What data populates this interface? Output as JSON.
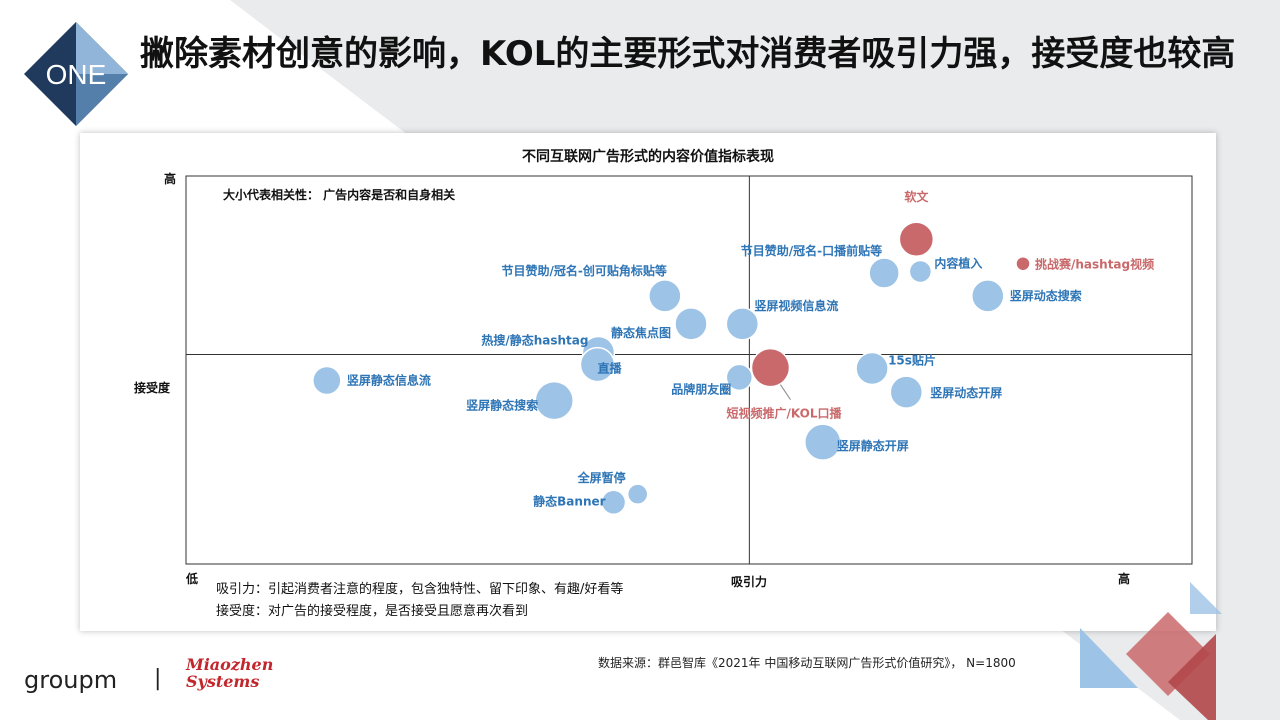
{
  "header": {
    "badge": "ONE",
    "title": "撇除素材创意的影响，KOL的主要形式对消费者吸引力强，接受度也较高"
  },
  "chart_data": {
    "type": "scatter",
    "title": "不同互联网广告形式的内容价值指标表现",
    "subtitle": "大小代表相关性： 广告内容是否和自身相关",
    "xlabel": "吸引力",
    "ylabel": "接受度",
    "x_low": "低",
    "x_high": "高",
    "y_high": "高",
    "xlim": [
      0,
      100
    ],
    "ylim": [
      0,
      100
    ],
    "quadrant_split": [
      56,
      54
    ],
    "colors": {
      "blue": "#9dc3e6",
      "red": "#c9696b",
      "blue_text": "#2e75b6",
      "red_text": "#c9696b"
    },
    "points": [
      {
        "label": "软文",
        "x": 72.6,
        "y": 83.7,
        "r": 17,
        "color": "red"
      },
      {
        "label": "挑战赛/hashtag视频",
        "x": 83.2,
        "y": 77.4,
        "r": 7,
        "color": "red"
      },
      {
        "label": "节目赞助/冠名-口播前贴等",
        "x": 69.4,
        "y": 75.0,
        "r": 15,
        "color": "blue"
      },
      {
        "label": "内容植入",
        "x": 73.0,
        "y": 75.4,
        "r": 11,
        "color": "blue"
      },
      {
        "label": "竖屏动态搜索",
        "x": 79.7,
        "y": 69.1,
        "r": 16,
        "color": "blue"
      },
      {
        "label": "节目赞助/冠名-创可贴角标贴等",
        "x": 47.6,
        "y": 69.1,
        "r": 16,
        "color": "blue"
      },
      {
        "label": "竖屏视频信息流",
        "x": 55.3,
        "y": 61.9,
        "r": 16,
        "color": "blue"
      },
      {
        "label": "静态焦点图",
        "x": 50.2,
        "y": 61.9,
        "r": 16,
        "color": "blue"
      },
      {
        "label": "热搜/静态hashtag",
        "x": 41.0,
        "y": 54.5,
        "r": 16,
        "color": "blue"
      },
      {
        "label": "直播",
        "x": 40.9,
        "y": 51.4,
        "r": 17,
        "color": "blue"
      },
      {
        "label": "竖屏静态信息流",
        "x": 14.0,
        "y": 47.3,
        "r": 14,
        "color": "blue"
      },
      {
        "label": "竖屏静态搜索",
        "x": 36.6,
        "y": 42.1,
        "r": 19,
        "color": "blue"
      },
      {
        "label": "品牌朋友圈",
        "x": 55.0,
        "y": 48.1,
        "r": 13,
        "color": "blue"
      },
      {
        "label": "短视频推广/KOL口播",
        "x": 58.1,
        "y": 50.6,
        "r": 19,
        "color": "red"
      },
      {
        "label": "15s贴片",
        "x": 68.2,
        "y": 50.4,
        "r": 16,
        "color": "blue"
      },
      {
        "label": "竖屏动态开屏",
        "x": 71.6,
        "y": 44.3,
        "r": 16,
        "color": "blue"
      },
      {
        "label": "竖屏静态开屏",
        "x": 63.3,
        "y": 31.4,
        "r": 18,
        "color": "blue"
      },
      {
        "label": "全屏暂停",
        "x": 44.9,
        "y": 18.0,
        "r": 10,
        "color": "blue"
      },
      {
        "label": "静态Banner",
        "x": 42.5,
        "y": 15.9,
        "r": 12,
        "color": "blue"
      }
    ],
    "notes": [
      "吸引力：引起消费者注意的程度，包含独特性、留下印象、有趣/好看等",
      "接受度：对广告的接受程度，是否接受且愿意再次看到"
    ]
  },
  "footer": {
    "source": "数据来源：群邑智库《2021年 中国移动互联网广告形式价值研究》， N=1800",
    "logo_group": "groupm",
    "logo_sep": "|",
    "logo_mz_line1": "Miaozhen",
    "logo_mz_line2": "Systems"
  }
}
